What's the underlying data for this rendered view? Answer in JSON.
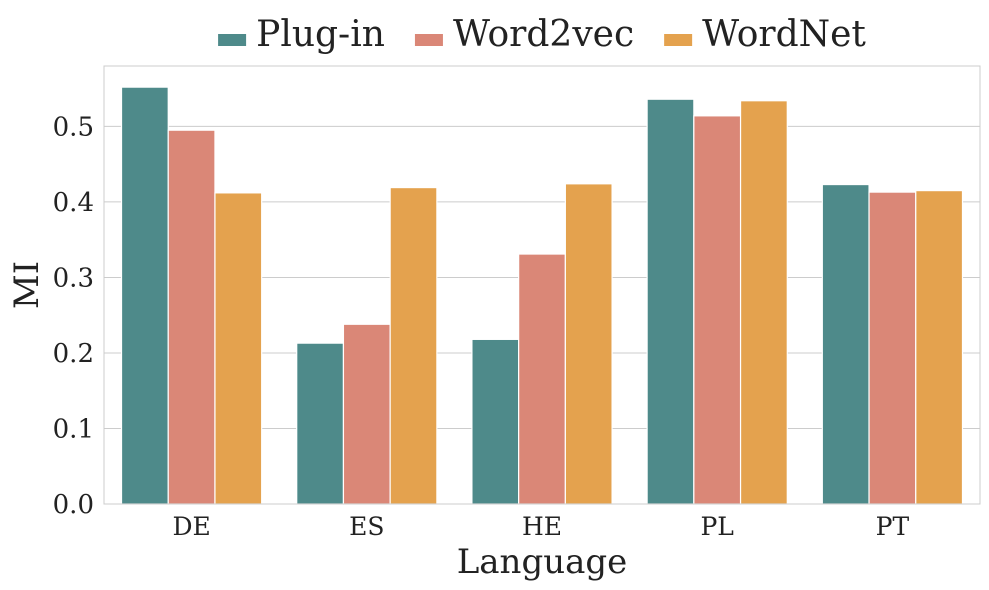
{
  "chart_data": {
    "type": "bar",
    "categories": [
      "DE",
      "ES",
      "HE",
      "PL",
      "PT"
    ],
    "series": [
      {
        "name": "Plug-in",
        "color": "#4e8a8a",
        "values": [
          0.552,
          0.213,
          0.218,
          0.536,
          0.423
        ]
      },
      {
        "name": "Word2vec",
        "color": "#da8777",
        "values": [
          0.495,
          0.238,
          0.331,
          0.514,
          0.413
        ]
      },
      {
        "name": "WordNet",
        "color": "#e4a24e",
        "values": [
          0.412,
          0.419,
          0.424,
          0.534,
          0.415
        ]
      }
    ],
    "xlabel": "Language",
    "ylabel": "MI",
    "ylim": [
      0,
      0.58
    ],
    "yticks": [
      0.0,
      0.1,
      0.2,
      0.3,
      0.4,
      0.5
    ],
    "ytick_labels": [
      "0.0",
      "0.1",
      "0.2",
      "0.3",
      "0.4",
      "0.5"
    ],
    "grid": true,
    "legend_position": "top-center"
  }
}
